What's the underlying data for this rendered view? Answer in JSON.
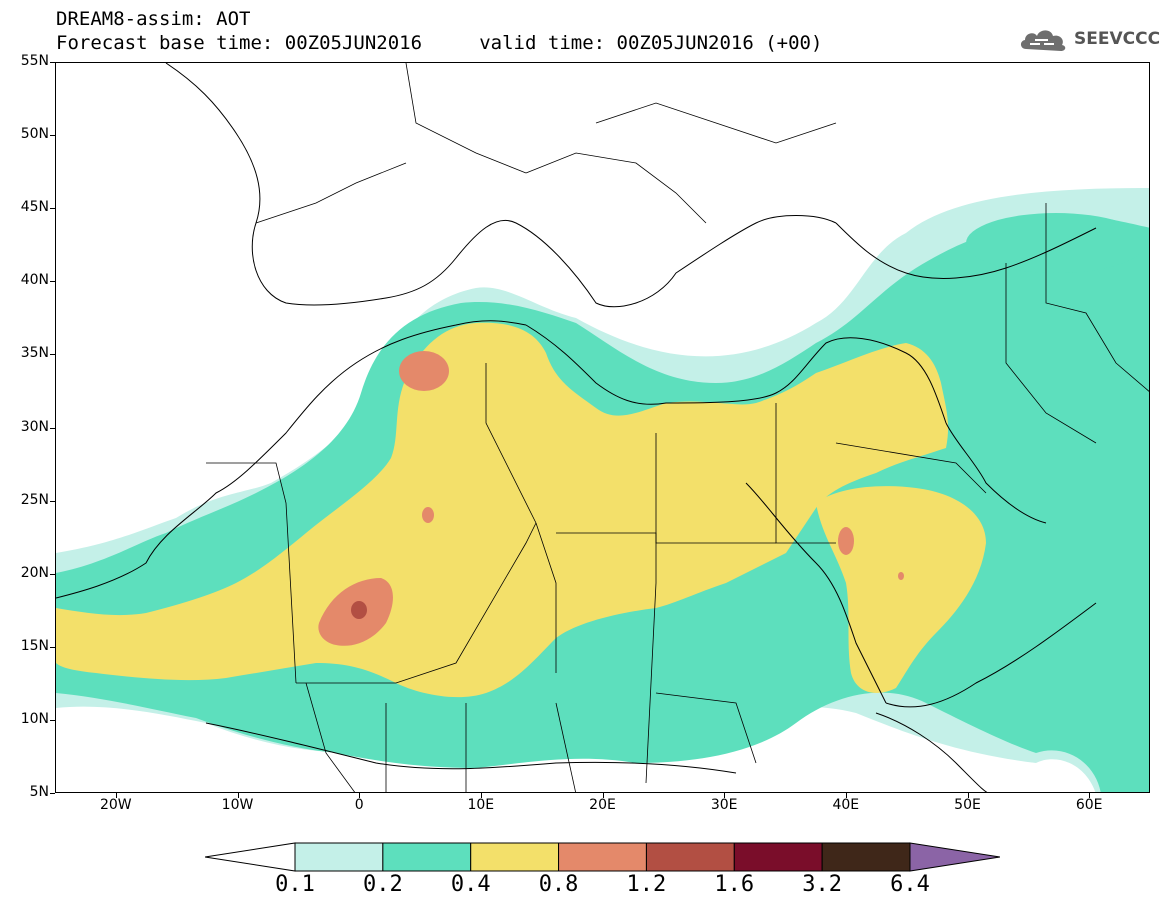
{
  "title": {
    "line1": "DREAM8-assim: AOT",
    "line2": "Forecast base time: 00Z05JUN2016     valid time: 00Z05JUN2016 (+00)"
  },
  "logo": {
    "text": "SEEVCCC",
    "icon": "cloud-icon"
  },
  "map": {
    "lat_labels": [
      "55N",
      "50N",
      "45N",
      "40N",
      "35N",
      "30N",
      "25N",
      "20N",
      "15N",
      "10N",
      "5N"
    ],
    "lat_values": [
      55,
      50,
      45,
      40,
      35,
      30,
      25,
      20,
      15,
      10,
      5
    ],
    "lon_labels": [
      "20W",
      "10W",
      "0",
      "10E",
      "20E",
      "30E",
      "40E",
      "50E",
      "60E"
    ],
    "lon_values": [
      -20,
      -10,
      0,
      10,
      20,
      30,
      40,
      50,
      60
    ],
    "extent": {
      "lon": [
        -25,
        65
      ],
      "lat": [
        5,
        55
      ]
    },
    "field": "AOT"
  },
  "colorbar": {
    "labels": [
      "0.1",
      "0.2",
      "0.4",
      "0.8",
      "1.2",
      "1.6",
      "3.2",
      "6.4"
    ],
    "colors": [
      "#ffffff",
      "#c4f0e8",
      "#5ddfbd",
      "#f3e06a",
      "#e4896a",
      "#b24f43",
      "#7a0d2a",
      "#3f2719",
      "#8b64a6"
    ]
  }
}
